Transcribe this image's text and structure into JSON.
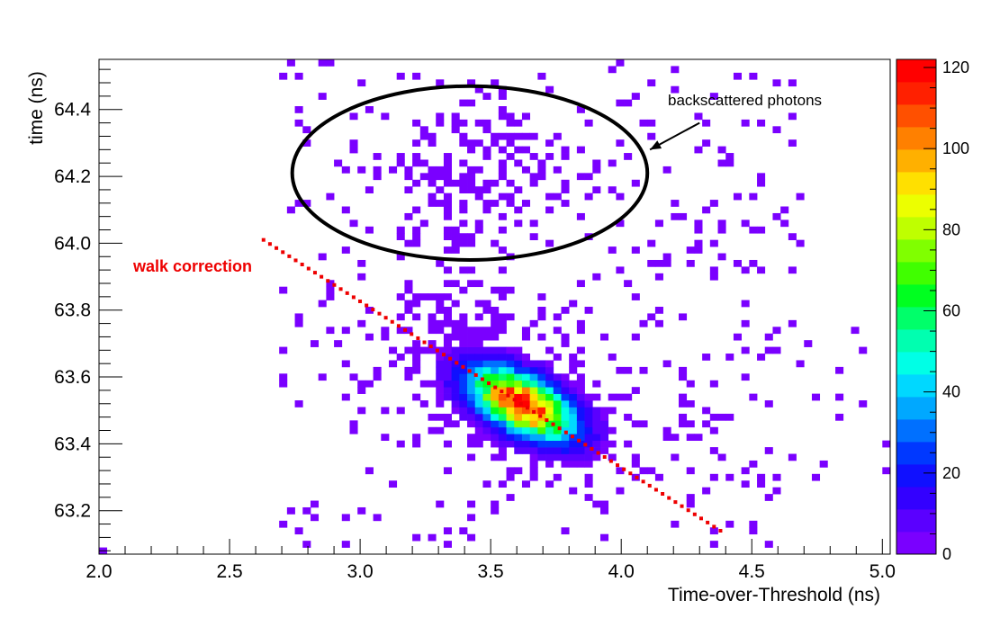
{
  "chart_data": {
    "type": "heatmap",
    "title": "",
    "xlabel": "Time-over-Threshold (ns)",
    "ylabel": "time (ns)",
    "xlim": [
      2.0,
      5.03
    ],
    "ylim": [
      63.07,
      64.55
    ],
    "x_ticks": [
      "2.0",
      "2.5",
      "3.0",
      "3.5",
      "4.0",
      "4.5",
      "5.0"
    ],
    "y_ticks": [
      "63.2",
      "63.4",
      "63.6",
      "63.8",
      "64.0",
      "64.2",
      "64.4"
    ],
    "colorbar": {
      "min": 0,
      "max": 122,
      "ticks": [
        "0",
        "20",
        "40",
        "60",
        "80",
        "100",
        "120"
      ]
    },
    "bins": {
      "x_width": 0.03,
      "y_width": 0.02
    },
    "components": [
      {
        "kind": "core",
        "cx": 3.62,
        "cy": 63.52,
        "sx": 0.13,
        "sy": 0.07,
        "rho": -0.55,
        "peak": 120
      },
      {
        "kind": "halo",
        "cx": 3.55,
        "cy": 63.6,
        "sx": 0.3,
        "sy": 0.17,
        "rho": -0.4,
        "density": 0.8
      },
      {
        "kind": "backscatter",
        "cx": 3.45,
        "cy": 64.2,
        "sx": 0.24,
        "sy": 0.17,
        "rho": 0.0,
        "density": 0.55
      },
      {
        "kind": "tail",
        "x_range": [
          3.9,
          5.03
        ],
        "y_range": [
          63.3,
          63.75
        ],
        "density": 0.22
      },
      {
        "kind": "sparse",
        "x_range": [
          2.7,
          4.7
        ],
        "y_range": [
          63.1,
          64.55
        ],
        "density": 0.08
      }
    ],
    "walk_correction": {
      "x": [
        2.63,
        4.38
      ],
      "y": [
        64.01,
        63.14
      ]
    },
    "ellipse": {
      "cx": 3.42,
      "cy": 64.21,
      "rx": 0.68,
      "ry": 0.26
    },
    "arrow": {
      "from": [
        4.3,
        64.36
      ],
      "to": [
        4.11,
        64.28
      ]
    },
    "annotations": {
      "backscatter": "backscattered photons",
      "walk": "walk correction"
    },
    "grid": false,
    "log_scale": false
  }
}
